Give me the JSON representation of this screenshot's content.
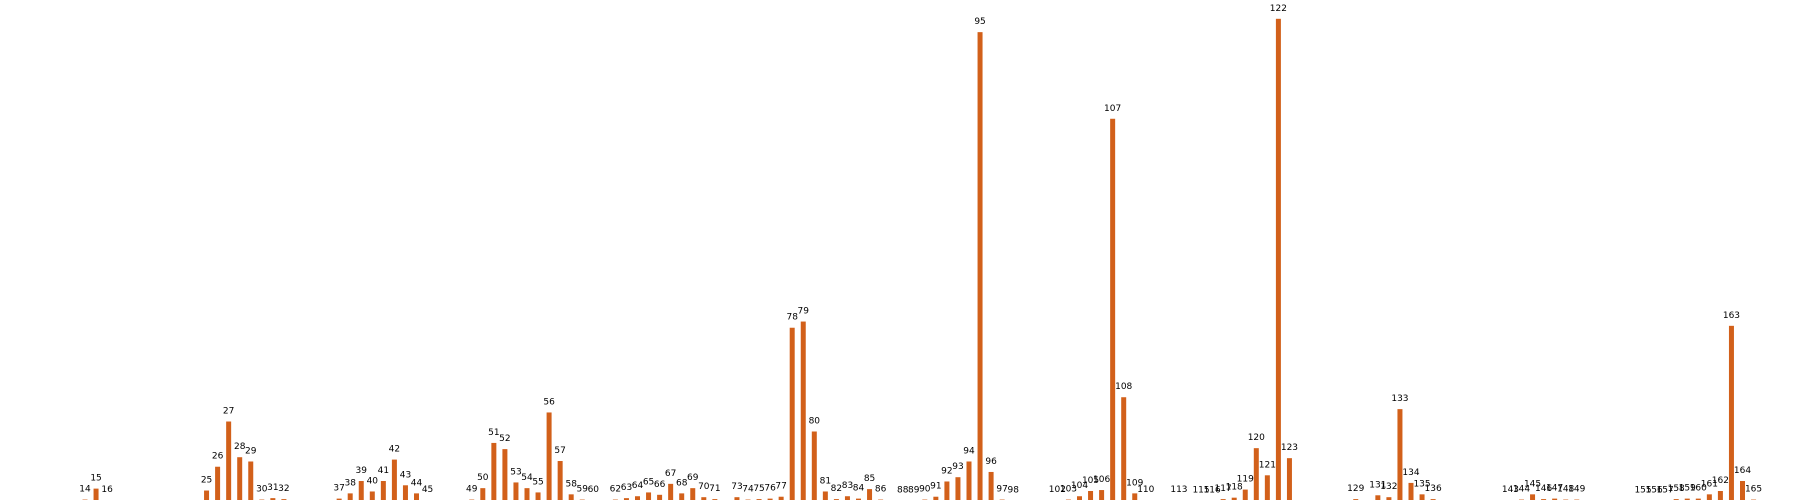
{
  "colors": {
    "bar": "#d2601a",
    "background": "#ffffff"
  },
  "chart_data": {
    "type": "bar",
    "title": "",
    "xlabel": "",
    "ylabel": "",
    "axes_visible": false,
    "grid": false,
    "data_labels": "bar index printed above each bar",
    "ylim": [
      0,
      100
    ],
    "bars": [
      {
        "label": "14",
        "value": 0.3
      },
      {
        "label": "15",
        "value": 2.6
      },
      {
        "label": "16",
        "value": 0.2
      },
      {
        "label": "25",
        "value": 2.2
      },
      {
        "label": "26",
        "value": 7.2
      },
      {
        "label": "27",
        "value": 16.7
      },
      {
        "label": "28",
        "value": 9.2
      },
      {
        "label": "29",
        "value": 8.3
      },
      {
        "label": "30",
        "value": 0.3
      },
      {
        "label": "31",
        "value": 0.6
      },
      {
        "label": "32",
        "value": 0.4
      },
      {
        "label": "37",
        "value": 0.5
      },
      {
        "label": "38",
        "value": 1.6
      },
      {
        "label": "39",
        "value": 4.2
      },
      {
        "label": "40",
        "value": 2.0
      },
      {
        "label": "41",
        "value": 4.2
      },
      {
        "label": "42",
        "value": 8.7
      },
      {
        "label": "43",
        "value": 3.3
      },
      {
        "label": "44",
        "value": 1.6
      },
      {
        "label": "45",
        "value": 0.2
      },
      {
        "label": "49",
        "value": 0.3
      },
      {
        "label": "50",
        "value": 2.7
      },
      {
        "label": "51",
        "value": 12.2
      },
      {
        "label": "52",
        "value": 10.9
      },
      {
        "label": "53",
        "value": 3.9
      },
      {
        "label": "54",
        "value": 2.7
      },
      {
        "label": "55",
        "value": 1.8
      },
      {
        "label": "56",
        "value": 18.6
      },
      {
        "label": "57",
        "value": 8.4
      },
      {
        "label": "58",
        "value": 1.4
      },
      {
        "label": "59",
        "value": 0.3
      },
      {
        "label": "60",
        "value": 0.2
      },
      {
        "label": "62",
        "value": 0.3
      },
      {
        "label": "63",
        "value": 0.6
      },
      {
        "label": "64",
        "value": 1.0
      },
      {
        "label": "65",
        "value": 1.8
      },
      {
        "label": "66",
        "value": 1.3
      },
      {
        "label": "67",
        "value": 3.6
      },
      {
        "label": "68",
        "value": 1.6
      },
      {
        "label": "69",
        "value": 2.7
      },
      {
        "label": "70",
        "value": 0.8
      },
      {
        "label": "71",
        "value": 0.4
      },
      {
        "label": "73",
        "value": 0.8
      },
      {
        "label": "74",
        "value": 0.3
      },
      {
        "label": "75",
        "value": 0.4
      },
      {
        "label": "76",
        "value": 0.5
      },
      {
        "label": "77",
        "value": 0.9
      },
      {
        "label": "78",
        "value": 36.4
      },
      {
        "label": "79",
        "value": 37.7
      },
      {
        "label": "80",
        "value": 14.6
      },
      {
        "label": "81",
        "value": 2.0
      },
      {
        "label": "82",
        "value": 0.4
      },
      {
        "label": "83",
        "value": 1.0
      },
      {
        "label": "84",
        "value": 0.5
      },
      {
        "label": "85",
        "value": 2.5
      },
      {
        "label": "86",
        "value": 0.3
      },
      {
        "label": "88",
        "value": 0.1
      },
      {
        "label": "89",
        "value": 0.1
      },
      {
        "label": "90",
        "value": 0.3
      },
      {
        "label": "91",
        "value": 0.9
      },
      {
        "label": "92",
        "value": 4.1
      },
      {
        "label": "93",
        "value": 5.0
      },
      {
        "label": "94",
        "value": 8.3
      },
      {
        "label": "95",
        "value": 98.5
      },
      {
        "label": "96",
        "value": 6.1
      },
      {
        "label": "97",
        "value": 0.3
      },
      {
        "label": "98",
        "value": 0.1
      },
      {
        "label": "102",
        "value": 0.2
      },
      {
        "label": "103",
        "value": 0.3
      },
      {
        "label": "104",
        "value": 1.0
      },
      {
        "label": "105",
        "value": 2.1
      },
      {
        "label": "106",
        "value": 2.3
      },
      {
        "label": "107",
        "value": 80.3
      },
      {
        "label": "108",
        "value": 21.8
      },
      {
        "label": "109",
        "value": 1.6
      },
      {
        "label": "110",
        "value": 0.2
      },
      {
        "label": "113",
        "value": 0.2
      },
      {
        "label": "115",
        "value": 0.1
      },
      {
        "label": "116",
        "value": 0.1
      },
      {
        "label": "117",
        "value": 0.4
      },
      {
        "label": "118",
        "value": 0.7
      },
      {
        "label": "119",
        "value": 2.4
      },
      {
        "label": "120",
        "value": 11.1
      },
      {
        "label": "121",
        "value": 5.4
      },
      {
        "label": "122",
        "value": 101.3
      },
      {
        "label": "123",
        "value": 9.0
      },
      {
        "label": "129",
        "value": 0.4
      },
      {
        "label": "131",
        "value": 1.2
      },
      {
        "label": "132",
        "value": 0.8
      },
      {
        "label": "133",
        "value": 19.3
      },
      {
        "label": "134",
        "value": 3.8
      },
      {
        "label": "135",
        "value": 1.4
      },
      {
        "label": "136",
        "value": 0.4
      },
      {
        "label": "143",
        "value": 0.2
      },
      {
        "label": "144",
        "value": 0.3
      },
      {
        "label": "145",
        "value": 1.4
      },
      {
        "label": "146",
        "value": 0.4
      },
      {
        "label": "147",
        "value": 0.5
      },
      {
        "label": "148",
        "value": 0.3
      },
      {
        "label": "149",
        "value": 0.3
      },
      {
        "label": "155",
        "value": 0.1
      },
      {
        "label": "156",
        "value": 0.1
      },
      {
        "label": "157",
        "value": 0.1
      },
      {
        "label": "158",
        "value": 0.4
      },
      {
        "label": "159",
        "value": 0.5
      },
      {
        "label": "160",
        "value": 0.5
      },
      {
        "label": "161",
        "value": 1.4
      },
      {
        "label": "162",
        "value": 2.1
      },
      {
        "label": "163",
        "value": 36.8
      },
      {
        "label": "164",
        "value": 4.2
      },
      {
        "label": "165",
        "value": 0.3
      }
    ]
  }
}
